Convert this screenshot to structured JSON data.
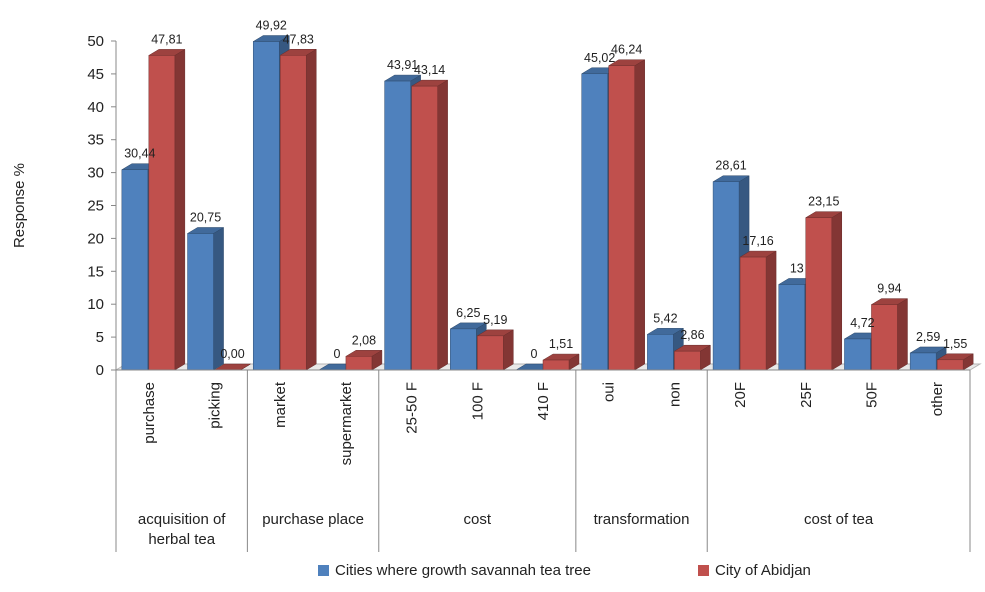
{
  "chart_data": {
    "type": "bar",
    "ylabel": "Response %",
    "ylim": [
      0,
      50
    ],
    "yticks": [
      "0",
      "5",
      "10",
      "15",
      "20",
      "25",
      "30",
      "35",
      "40",
      "45",
      "50"
    ],
    "grid": false,
    "legend_position": "bottom",
    "categories": [
      "purchase",
      "picking",
      "market",
      "supermarket",
      "25-50 F",
      "100 F",
      "410 F",
      "oui",
      "non",
      "20F",
      "25F",
      "50F",
      "other"
    ],
    "groups": [
      {
        "label_lines": [
          "acquisition of",
          "herbal tea"
        ],
        "count": 2
      },
      {
        "label_lines": [
          "purchase place"
        ],
        "count": 2
      },
      {
        "label_lines": [
          "cost"
        ],
        "count": 3
      },
      {
        "label_lines": [
          "transformation"
        ],
        "count": 2
      },
      {
        "label_lines": [
          "cost of tea"
        ],
        "count": 4
      }
    ],
    "series": [
      {
        "name": "Cities where growth savannah tea tree",
        "color": "#4F81BD",
        "values": [
          30.44,
          20.75,
          49.92,
          0,
          43.91,
          6.25,
          0,
          45.02,
          5.42,
          28.61,
          13,
          4.72,
          2.59
        ],
        "labels": [
          "30,44",
          "20,75",
          "49,92",
          "0",
          "43,91",
          "6,25",
          "0",
          "45,02",
          "5,42",
          "28,61",
          "13",
          "4,72",
          "2,59"
        ]
      },
      {
        "name": "City of Abidjan",
        "color": "#C0504D",
        "values": [
          47.81,
          0,
          47.83,
          2.08,
          43.14,
          5.19,
          1.51,
          46.24,
          2.86,
          17.16,
          23.15,
          9.94,
          1.55
        ],
        "labels": [
          "47,81",
          "0,00",
          "47,83",
          "2,08",
          "43,14",
          "5,19",
          "1,51",
          "46,24",
          "2,86",
          "17,16",
          "23,15",
          "9,94",
          "1,55"
        ]
      }
    ]
  }
}
